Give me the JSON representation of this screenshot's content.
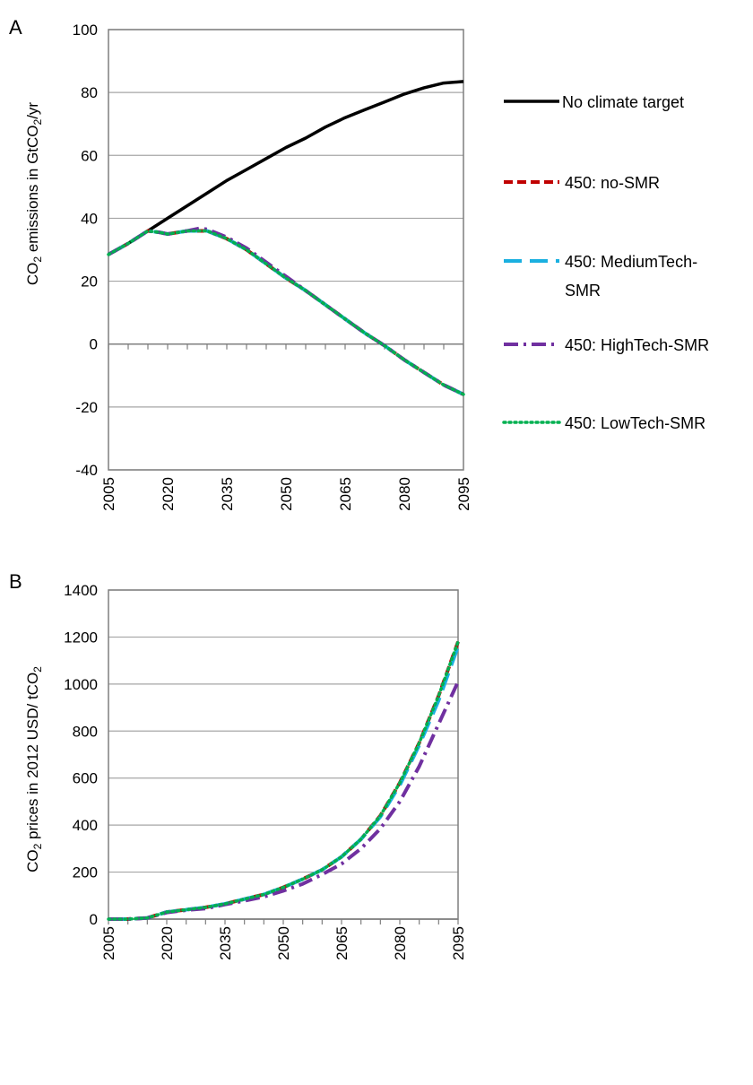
{
  "colors": {
    "no_target": "#000000",
    "no_smr": "#c00000",
    "medium": "#1ab0e0",
    "high": "#7030a0",
    "low": "#00b050",
    "grid": "#a6a6a6",
    "axis": "#7f7f7f"
  },
  "chart_data": [
    {
      "type": "line",
      "panel_label": "A",
      "ylabel": {
        "pre": "CO",
        "sub1": "2",
        "mid": " emissions in GtCO",
        "sub2": "2",
        "post": "/yr"
      },
      "ylim": [
        -40,
        100
      ],
      "yticks": [
        -40,
        -20,
        0,
        20,
        40,
        60,
        80,
        100
      ],
      "xlim": [
        2005,
        2095
      ],
      "xtick_labels": [
        "2005",
        "2020",
        "2035",
        "2050",
        "2065",
        "2080",
        "2095"
      ],
      "grid": true,
      "legend_placement": "right",
      "series": [
        {
          "name": "No climate target",
          "style": "solid",
          "color_key": "no_target",
          "x": [
            2005,
            2010,
            2015,
            2020,
            2025,
            2030,
            2035,
            2040,
            2045,
            2050,
            2055,
            2060,
            2065,
            2070,
            2075,
            2080,
            2085,
            2090,
            2095
          ],
          "y": [
            28.5,
            32,
            36,
            40,
            44,
            48,
            52,
            55.5,
            59,
            62.5,
            65.5,
            69,
            72,
            74.5,
            77,
            79.5,
            81.5,
            83,
            83.5
          ]
        },
        {
          "name": "450: no-SMR",
          "style": "dash",
          "color_key": "no_smr",
          "x": [
            2005,
            2010,
            2015,
            2018,
            2020,
            2025,
            2030,
            2035,
            2040,
            2045,
            2050,
            2055,
            2060,
            2065,
            2070,
            2075,
            2080,
            2085,
            2090,
            2095
          ],
          "y": [
            28.5,
            32,
            36,
            35.5,
            35,
            36,
            36,
            33.5,
            30,
            25.5,
            21,
            17,
            12.5,
            8,
            3.5,
            -0.5,
            -5,
            -9,
            -13,
            -16
          ]
        },
        {
          "name": "450: MediumTech-SMR",
          "style": "longdash",
          "color_key": "medium",
          "x": [
            2005,
            2010,
            2015,
            2018,
            2020,
            2025,
            2030,
            2035,
            2040,
            2045,
            2050,
            2055,
            2060,
            2065,
            2070,
            2075,
            2080,
            2085,
            2090,
            2095
          ],
          "y": [
            28.5,
            32,
            36,
            35.5,
            35,
            36,
            36,
            33.5,
            30,
            25.5,
            21,
            17,
            12.5,
            8,
            3.5,
            -0.5,
            -5,
            -9,
            -13,
            -16
          ]
        },
        {
          "name": "450: HighTech-SMR",
          "style": "dashdot",
          "color_key": "high",
          "x": [
            2005,
            2010,
            2015,
            2018,
            2020,
            2025,
            2028,
            2030,
            2035,
            2040,
            2045,
            2050,
            2055,
            2060,
            2065,
            2070,
            2075,
            2080,
            2085,
            2090,
            2095
          ],
          "y": [
            28.5,
            32,
            36,
            35.5,
            35,
            36,
            36.8,
            36.5,
            34,
            30.5,
            26,
            21.5,
            17,
            12.5,
            8,
            3.5,
            -0.5,
            -5,
            -9,
            -13,
            -16
          ]
        },
        {
          "name": "450: LowTech-SMR",
          "style": "dot",
          "color_key": "low",
          "x": [
            2005,
            2010,
            2015,
            2018,
            2020,
            2025,
            2030,
            2035,
            2040,
            2045,
            2050,
            2055,
            2060,
            2065,
            2070,
            2075,
            2080,
            2085,
            2090,
            2095
          ],
          "y": [
            28.5,
            32,
            36,
            35.5,
            35,
            36,
            36,
            33.5,
            30,
            25.5,
            21,
            17,
            12.5,
            8,
            3.5,
            -0.5,
            -5,
            -9,
            -13,
            -16
          ]
        }
      ]
    },
    {
      "type": "line",
      "panel_label": "B",
      "ylabel": {
        "pre": "CO",
        "sub1": "2",
        "mid": " prices in 2012 USD/ tCO",
        "sub2": "2",
        "post": ""
      },
      "ylim": [
        0,
        1400
      ],
      "yticks": [
        0,
        200,
        400,
        600,
        800,
        1000,
        1200,
        1400
      ],
      "xlim": [
        2005,
        2095
      ],
      "xtick_labels": [
        "2005",
        "2020",
        "2035",
        "2050",
        "2065",
        "2080",
        "2095"
      ],
      "grid": true,
      "legend_placement": "none",
      "series": [
        {
          "name": "450: no-SMR",
          "style": "dash",
          "color_key": "no_smr",
          "x": [
            2005,
            2010,
            2015,
            2020,
            2025,
            2030,
            2035,
            2040,
            2045,
            2050,
            2055,
            2060,
            2065,
            2070,
            2075,
            2080,
            2085,
            2090,
            2095
          ],
          "y": [
            0,
            0,
            5,
            30,
            40,
            50,
            65,
            85,
            105,
            135,
            170,
            210,
            265,
            340,
            440,
            580,
            750,
            950,
            1180
          ]
        },
        {
          "name": "450: MediumTech-SMR",
          "style": "longdash",
          "color_key": "medium",
          "x": [
            2005,
            2010,
            2015,
            2020,
            2025,
            2030,
            2035,
            2040,
            2045,
            2050,
            2055,
            2060,
            2065,
            2070,
            2075,
            2080,
            2085,
            2090,
            2095
          ],
          "y": [
            0,
            0,
            5,
            30,
            40,
            50,
            65,
            85,
            105,
            135,
            170,
            210,
            265,
            340,
            435,
            570,
            740,
            930,
            1160
          ]
        },
        {
          "name": "450: HighTech-SMR",
          "style": "dashdot",
          "color_key": "high",
          "x": [
            2005,
            2010,
            2015,
            2020,
            2025,
            2030,
            2035,
            2040,
            2045,
            2050,
            2055,
            2060,
            2065,
            2070,
            2075,
            2080,
            2085,
            2090,
            2095
          ],
          "y": [
            0,
            0,
            5,
            28,
            38,
            45,
            62,
            78,
            95,
            120,
            150,
            190,
            235,
            300,
            385,
            500,
            650,
            830,
            1010
          ]
        },
        {
          "name": "450: LowTech-SMR",
          "style": "dot",
          "color_key": "low",
          "x": [
            2005,
            2010,
            2015,
            2020,
            2025,
            2030,
            2035,
            2040,
            2045,
            2050,
            2055,
            2060,
            2065,
            2070,
            2075,
            2080,
            2085,
            2090,
            2095
          ],
          "y": [
            0,
            0,
            5,
            30,
            40,
            50,
            65,
            85,
            105,
            135,
            170,
            210,
            265,
            340,
            440,
            580,
            750,
            950,
            1180
          ]
        }
      ]
    }
  ]
}
